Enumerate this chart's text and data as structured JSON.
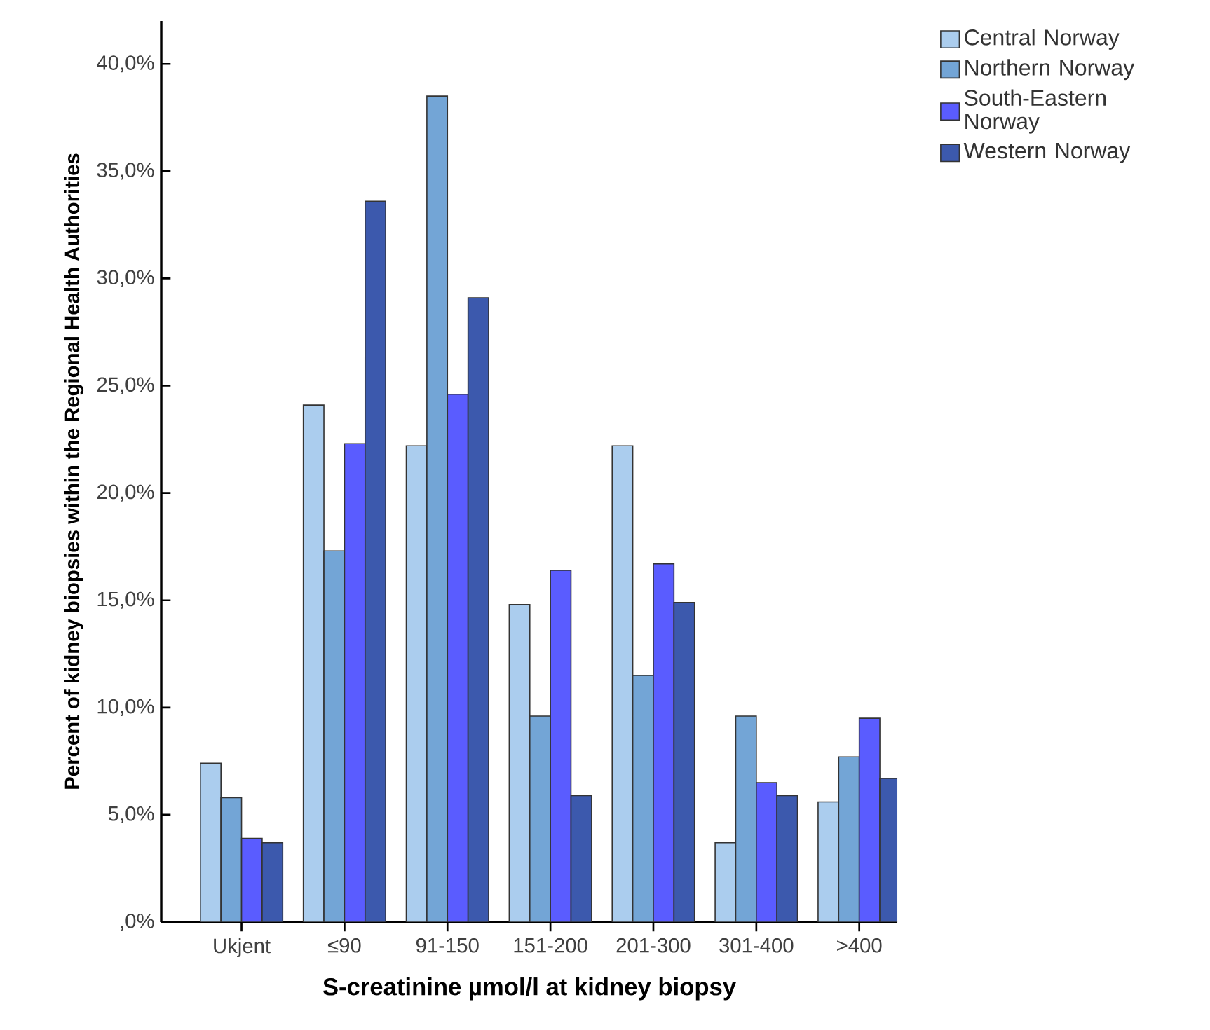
{
  "chart_data": {
    "type": "bar",
    "xlabel": "S-creatinine µmol/l at kidney biopsy",
    "ylabel": "Percent of kidney biopsies within the Regional Health Authorities",
    "categories": [
      "Ukjent",
      "≤90",
      "91-150",
      "151-200",
      "201-300",
      "301-400",
      ">400"
    ],
    "series": [
      {
        "name": "Central Norway",
        "color": "#abcdee",
        "values": [
          7.4,
          24.1,
          22.2,
          14.8,
          22.2,
          3.7,
          5.6
        ]
      },
      {
        "name": "Northern Norway",
        "color": "#73a5d6",
        "values": [
          5.8,
          17.3,
          38.5,
          9.6,
          11.5,
          9.6,
          7.7
        ]
      },
      {
        "name": "South-Eastern Norway",
        "color": "#5a5cff",
        "values": [
          3.9,
          22.3,
          24.6,
          16.4,
          16.7,
          6.5,
          9.5
        ]
      },
      {
        "name": "Western Norway",
        "color": "#3c59ad",
        "values": [
          3.7,
          33.6,
          29.1,
          5.9,
          14.9,
          5.9,
          6.7
        ]
      }
    ],
    "ylim": [
      0,
      42
    ],
    "yticks": [
      {
        "value": 0,
        "label": ",0%"
      },
      {
        "value": 5,
        "label": "5,0%"
      },
      {
        "value": 10,
        "label": "10,0%"
      },
      {
        "value": 15,
        "label": "15,0%"
      },
      {
        "value": 20,
        "label": "20,0%"
      },
      {
        "value": 25,
        "label": "25,0%"
      },
      {
        "value": 30,
        "label": "30,0%"
      },
      {
        "value": 35,
        "label": "35,0%"
      },
      {
        "value": 40,
        "label": "40,0%"
      }
    ],
    "legend": "top right",
    "grid": false
  }
}
